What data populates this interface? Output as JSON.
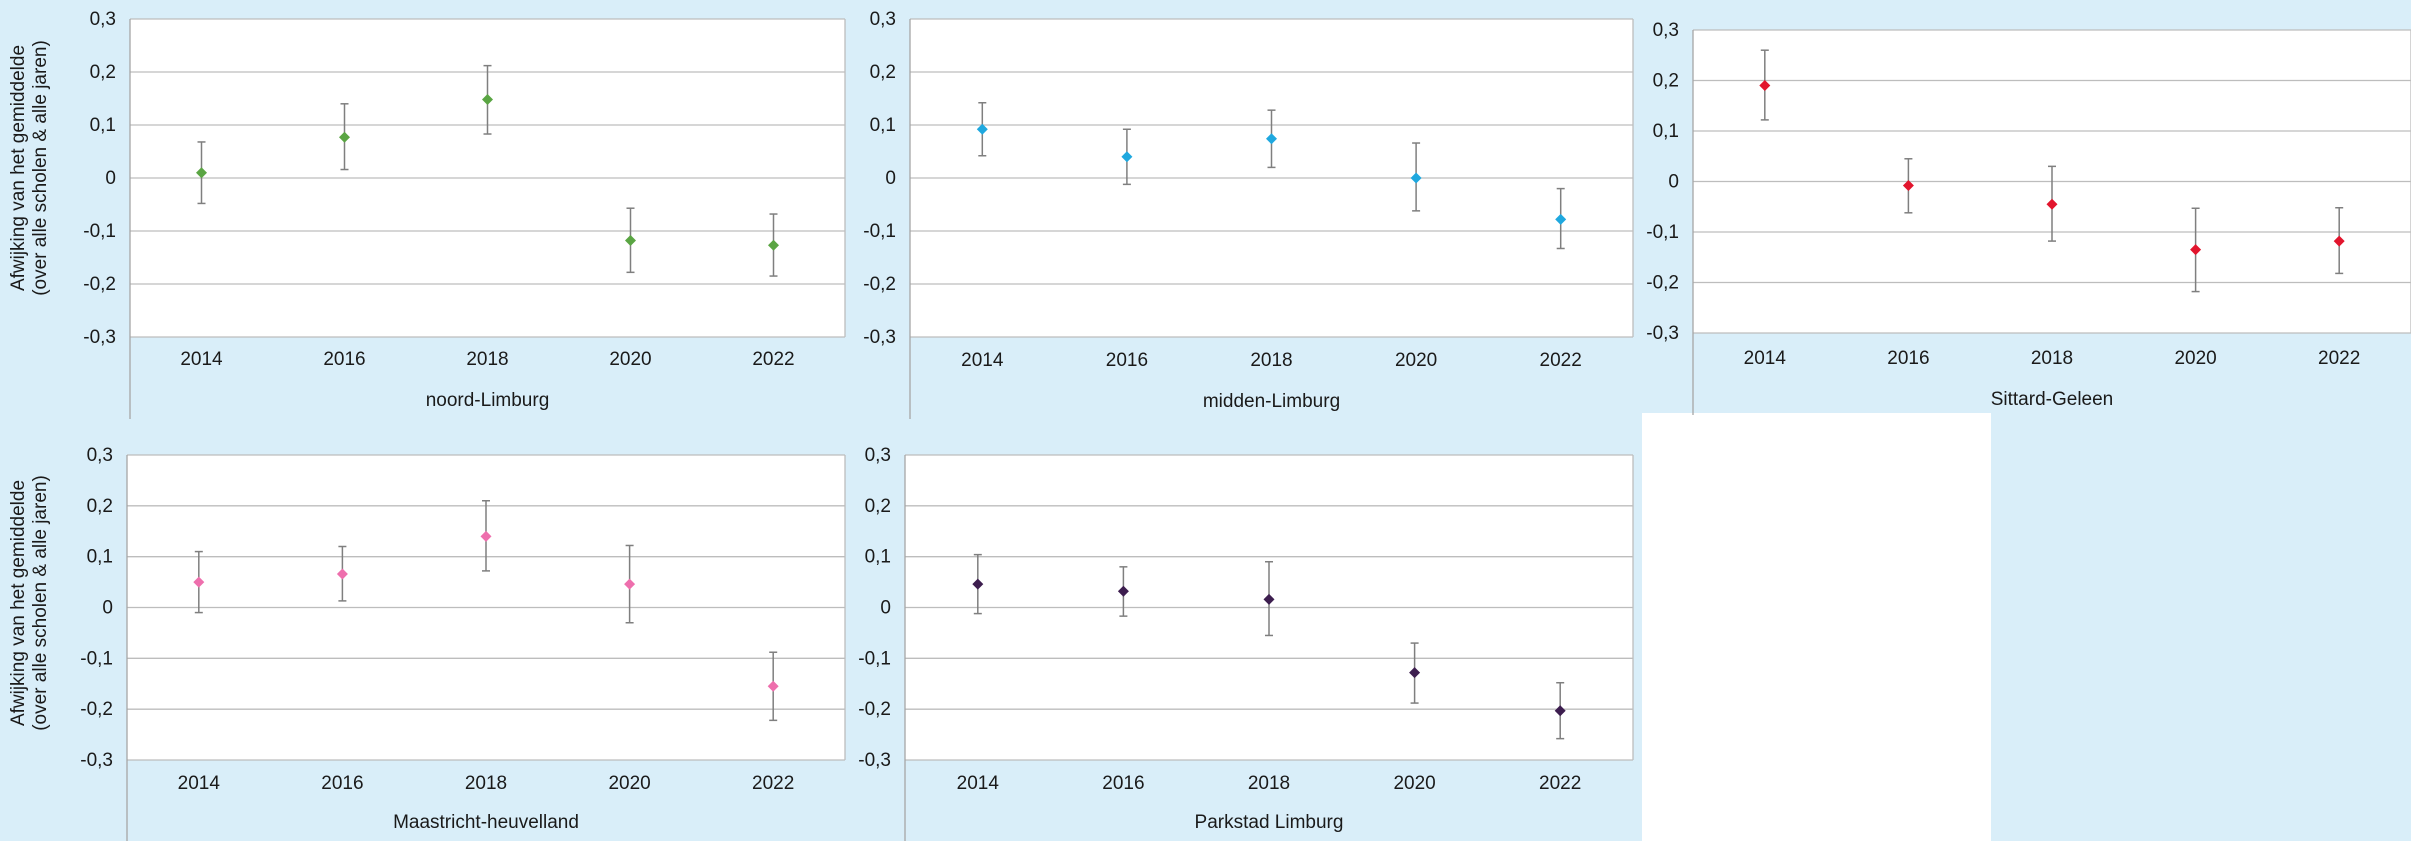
{
  "y_axis_label_line1": "Afwijking van het gemiddelde",
  "y_axis_label_line2": "(over alle scholen & alle jaren)",
  "chart_data": [
    {
      "type": "scatter",
      "title": "noord-Limburg",
      "categories": [
        "2014",
        "2016",
        "2018",
        "2020",
        "2022"
      ],
      "ylim": [
        -0.3,
        0.3
      ],
      "yticks": [
        "0,3",
        "0,2",
        "0,1",
        "0",
        "-0,1",
        "-0,2",
        "-0,3"
      ],
      "ytick_values": [
        0.3,
        0.2,
        0.1,
        0,
        -0.1,
        -0.2,
        -0.3
      ],
      "color": "#5aa543",
      "values": [
        0.01,
        0.077,
        0.148,
        -0.118,
        -0.127
      ],
      "err_low": [
        -0.048,
        0.016,
        0.083,
        -0.178,
        -0.185
      ],
      "err_high": [
        0.068,
        0.14,
        0.212,
        -0.057,
        -0.068
      ],
      "grid": true
    },
    {
      "type": "scatter",
      "title": "midden-Limburg",
      "categories": [
        "2014",
        "2016",
        "2018",
        "2020",
        "2022"
      ],
      "ylim": [
        -0.3,
        0.3
      ],
      "yticks": [
        "0,3",
        "0,2",
        "0,1",
        "0",
        "-0,1",
        "-0,2",
        "-0,3"
      ],
      "ytick_values": [
        0.3,
        0.2,
        0.1,
        0,
        -0.1,
        -0.2,
        -0.3
      ],
      "color": "#1fa8df",
      "values": [
        0.092,
        0.04,
        0.074,
        0.0,
        -0.078
      ],
      "err_low": [
        0.042,
        -0.012,
        0.02,
        -0.062,
        -0.133
      ],
      "err_high": [
        0.142,
        0.092,
        0.128,
        0.066,
        -0.02
      ],
      "grid": true
    },
    {
      "type": "scatter",
      "title": "Sittard-Geleen",
      "categories": [
        "2014",
        "2016",
        "2018",
        "2020",
        "2022"
      ],
      "ylim": [
        -0.3,
        0.3
      ],
      "yticks": [
        "0,3",
        "0,2",
        "0,1",
        "0",
        "-0,1",
        "-0,2",
        "-0,3"
      ],
      "ytick_values": [
        0.3,
        0.2,
        0.1,
        0,
        -0.1,
        -0.2,
        -0.3
      ],
      "color": "#e2152d",
      "values": [
        0.19,
        -0.008,
        -0.045,
        -0.135,
        -0.118
      ],
      "err_low": [
        0.122,
        -0.062,
        -0.118,
        -0.218,
        -0.182
      ],
      "err_high": [
        0.26,
        0.045,
        0.03,
        -0.053,
        -0.052
      ],
      "grid": true
    },
    {
      "type": "scatter",
      "title": "Maastricht-heuvelland",
      "categories": [
        "2014",
        "2016",
        "2018",
        "2020",
        "2022"
      ],
      "ylim": [
        -0.3,
        0.3
      ],
      "yticks": [
        "0,3",
        "0,2",
        "0,1",
        "0",
        "-0,1",
        "-0,2",
        "-0,3"
      ],
      "ytick_values": [
        0.3,
        0.2,
        0.1,
        0,
        -0.1,
        -0.2,
        -0.3
      ],
      "color": "#ee6fad",
      "values": [
        0.05,
        0.066,
        0.14,
        0.046,
        -0.155
      ],
      "err_low": [
        -0.01,
        0.013,
        0.072,
        -0.03,
        -0.222
      ],
      "err_high": [
        0.11,
        0.12,
        0.21,
        0.122,
        -0.088
      ],
      "grid": true
    },
    {
      "type": "scatter",
      "title": "Parkstad Limburg",
      "categories": [
        "2014",
        "2016",
        "2018",
        "2020",
        "2022"
      ],
      "ylim": [
        -0.3,
        0.3
      ],
      "yticks": [
        "0,3",
        "0,2",
        "0,1",
        "0",
        "-0,1",
        "-0,2",
        "-0,3"
      ],
      "ytick_values": [
        0.3,
        0.2,
        0.1,
        0,
        -0.1,
        -0.2,
        -0.3
      ],
      "color": "#3d1e4f",
      "values": [
        0.046,
        0.032,
        0.016,
        -0.128,
        -0.203
      ],
      "err_low": [
        -0.012,
        -0.017,
        -0.055,
        -0.188,
        -0.258
      ],
      "err_high": [
        0.104,
        0.08,
        0.09,
        -0.07,
        -0.148
      ],
      "grid": true
    }
  ]
}
